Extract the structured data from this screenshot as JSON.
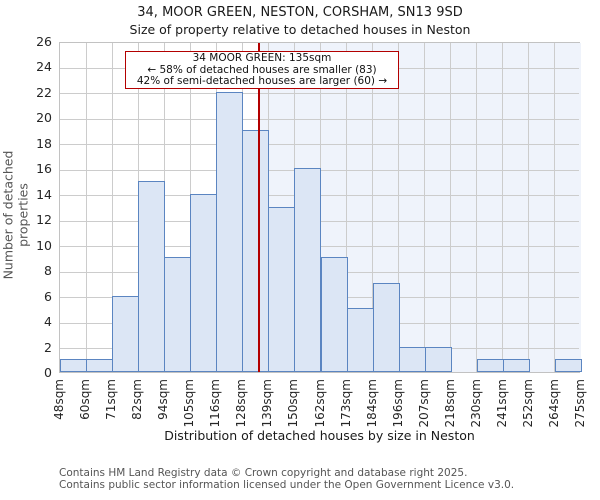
{
  "title": "34, MOOR GREEN, NESTON, CORSHAM, SN13 9SD",
  "subtitle": "Size of property relative to detached houses in Neston",
  "chart_data": {
    "type": "bar",
    "xlabel": "Distribution of detached houses by size in Neston",
    "ylabel": "Number of detached properties",
    "bin_edge_labels": [
      "48sqm",
      "60sqm",
      "71sqm",
      "82sqm",
      "94sqm",
      "105sqm",
      "116sqm",
      "128sqm",
      "139sqm",
      "150sqm",
      "162sqm",
      "173sqm",
      "184sqm",
      "196sqm",
      "207sqm",
      "218sqm",
      "230sqm",
      "241sqm",
      "252sqm",
      "264sqm",
      "275sqm"
    ],
    "bin_edges_sqm": [
      48,
      60,
      71,
      82,
      94,
      105,
      116,
      128,
      139,
      150,
      162,
      173,
      184,
      196,
      207,
      218,
      230,
      241,
      252,
      264,
      275
    ],
    "values": [
      1,
      1,
      6,
      15,
      9,
      14,
      22,
      19,
      13,
      16,
      9,
      5,
      7,
      2,
      2,
      0,
      1,
      1,
      0,
      1
    ],
    "ylim": [
      0,
      26
    ],
    "ytick_step": 2,
    "grid": true,
    "legend": "none",
    "marker": {
      "value_sqm": 135
    },
    "annotation": {
      "line1": "34 MOOR GREEN: 135sqm",
      "line2": "← 58% of detached houses are smaller (83)",
      "line3": "42% of semi-detached houses are larger (60) →"
    },
    "colors": {
      "bar_fill": "#dce6f5",
      "bar_edge": "#5b85c1",
      "marker_line": "#b30000",
      "annotation_border": "#b30000",
      "grid": "#cccccc",
      "shade_right_of_marker": "#eff3fb"
    }
  },
  "footer": {
    "line1": "Contains HM Land Registry data © Crown copyright and database right 2025.",
    "line2": "Contains public sector information licensed under the Open Government Licence v3.0."
  }
}
